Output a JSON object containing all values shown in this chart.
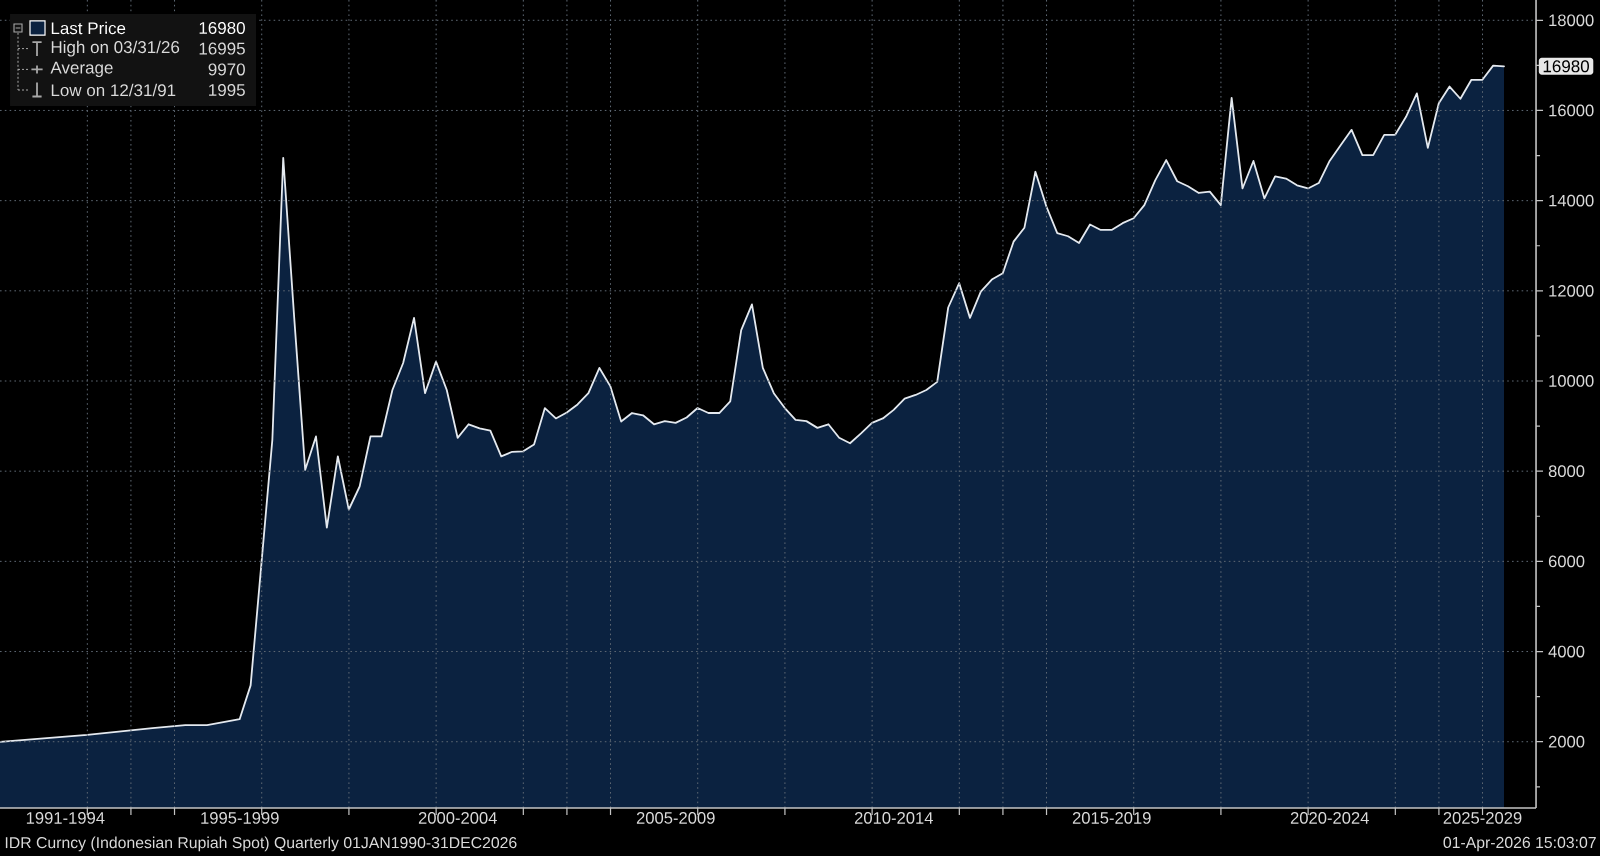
{
  "chart_data": {
    "type": "area",
    "x": [
      "1991-12-31",
      "1993-12-31",
      "1995-06-30",
      "1996-03-31",
      "1996-09-30",
      "1997-06-30",
      "1997-09-30",
      "1997-12-31",
      "1998-03-31",
      "1998-06-30",
      "1998-09-30",
      "1998-12-31",
      "1999-03-31",
      "1999-06-30",
      "1999-09-30",
      "1999-12-31",
      "2000-03-31",
      "2000-06-30",
      "2000-09-30",
      "2000-12-31",
      "2001-03-31",
      "2001-06-30",
      "2001-09-30",
      "2001-12-31",
      "2002-03-31",
      "2002-06-30",
      "2002-09-30",
      "2002-12-31",
      "2003-03-31",
      "2003-06-30",
      "2003-09-30",
      "2003-12-31",
      "2004-03-31",
      "2004-06-30",
      "2004-09-30",
      "2004-12-31",
      "2005-03-31",
      "2005-06-30",
      "2005-09-30",
      "2005-12-31",
      "2006-03-31",
      "2006-06-30",
      "2006-09-30",
      "2006-12-31",
      "2007-03-31",
      "2007-06-30",
      "2007-09-30",
      "2007-12-31",
      "2008-03-31",
      "2008-06-30",
      "2008-09-30",
      "2008-12-31",
      "2009-03-31",
      "2009-06-30",
      "2009-09-30",
      "2009-12-31",
      "2010-03-31",
      "2010-06-30",
      "2010-09-30",
      "2010-12-31",
      "2011-03-31",
      "2011-06-30",
      "2011-09-30",
      "2011-12-31",
      "2012-03-31",
      "2012-06-30",
      "2012-09-30",
      "2012-12-31",
      "2013-03-31",
      "2013-06-30",
      "2013-09-30",
      "2013-12-31",
      "2014-03-31",
      "2014-06-30",
      "2014-09-30",
      "2014-12-31",
      "2015-03-31",
      "2015-06-30",
      "2015-09-30",
      "2015-12-31",
      "2016-03-31",
      "2016-06-30",
      "2016-09-30",
      "2016-12-31",
      "2017-03-31",
      "2017-06-30",
      "2017-09-30",
      "2017-12-31",
      "2018-03-31",
      "2018-06-30",
      "2018-09-30",
      "2018-12-31",
      "2019-03-31",
      "2019-06-30",
      "2019-09-30",
      "2019-12-31",
      "2020-03-31",
      "2020-06-30",
      "2020-09-30",
      "2020-12-31",
      "2021-03-31",
      "2021-06-30",
      "2021-09-30",
      "2021-12-31",
      "2022-03-31",
      "2022-06-30",
      "2022-09-30",
      "2022-12-31",
      "2023-03-31",
      "2023-06-30",
      "2023-09-30",
      "2023-12-31",
      "2024-03-31",
      "2024-06-30",
      "2024-09-30",
      "2024-12-31",
      "2025-03-31",
      "2025-06-30",
      "2025-09-30",
      "2025-12-31",
      "2026-03-31",
      "2026-06-30"
    ],
    "series": [
      {
        "name": "Last Price",
        "color": "#0b2240",
        "values": [
          1995,
          2150,
          2300,
          2370,
          2370,
          2500,
          3250,
          6000,
          8700,
          14950,
          11400,
          8030,
          8770,
          6750,
          8330,
          7150,
          7660,
          8770,
          8770,
          9800,
          10400,
          11400,
          9730,
          10430,
          9800,
          8740,
          9040,
          8950,
          8900,
          8330,
          8430,
          8440,
          8590,
          9400,
          9170,
          9300,
          9480,
          9730,
          10290,
          9880,
          9100,
          9290,
          9240,
          9040,
          9110,
          9070,
          9190,
          9400,
          9290,
          9290,
          9550,
          11130,
          11700,
          10290,
          9730,
          9400,
          9140,
          9110,
          8960,
          9040,
          8740,
          8620,
          8840,
          9070,
          9170,
          9360,
          9610,
          9690,
          9800,
          9980,
          11630,
          12170,
          11400,
          11980,
          12250,
          12390,
          13090,
          13400,
          14640,
          13870,
          13280,
          13210,
          13060,
          13470,
          13350,
          13350,
          13500,
          13610,
          13900,
          14450,
          14900,
          14430,
          14320,
          14170,
          14200,
          13900,
          16280,
          14270,
          14880,
          14050,
          14540,
          14490,
          14340,
          14270,
          14390,
          14880,
          15230,
          15570,
          15010,
          15010,
          15460,
          15460,
          15860,
          16380,
          15170,
          16160,
          16530,
          16260,
          16680,
          16680,
          16995,
          16980
        ]
      }
    ],
    "xlim": [
      "1991-12-31",
      "2027-03-25"
    ],
    "ylim": [
      530,
      18450
    ],
    "xticks": [
      {
        "value": "1993-07",
        "label": "1991-1994"
      },
      {
        "value": "1994",
        "label": null
      },
      {
        "value": "1995",
        "label": null
      },
      {
        "value": "1996",
        "label": null
      },
      {
        "value": "1997-07",
        "label": "1995-1999"
      },
      {
        "value": "1998",
        "label": null
      },
      {
        "value": "2000",
        "label": null
      },
      {
        "value": "2002",
        "label": null
      },
      {
        "value": "2002-07",
        "label": "2000-2004"
      },
      {
        "value": "2004",
        "label": null
      },
      {
        "value": "2005",
        "label": null
      },
      {
        "value": "2006",
        "label": null
      },
      {
        "value": "2007-07",
        "label": "2005-2009"
      },
      {
        "value": "2008",
        "label": null
      },
      {
        "value": "2010",
        "label": null
      },
      {
        "value": "2012",
        "label": null
      },
      {
        "value": "2012-07",
        "label": "2010-2014"
      },
      {
        "value": "2014",
        "label": null
      },
      {
        "value": "2015",
        "label": null
      },
      {
        "value": "2016",
        "label": null
      },
      {
        "value": "2017-07",
        "label": "2015-2019"
      },
      {
        "value": "2018",
        "label": null
      },
      {
        "value": "2020",
        "label": null
      },
      {
        "value": "2022",
        "label": null
      },
      {
        "value": "2022-07",
        "label": "2020-2024"
      },
      {
        "value": "2024",
        "label": null
      },
      {
        "value": "2025",
        "label": null
      },
      {
        "value": "2026",
        "label": null
      },
      {
        "value": "2026-01",
        "label": "2025-2029"
      }
    ],
    "yticks": [
      {
        "value": 1000,
        "label": null
      },
      2000,
      {
        "value": 3000,
        "label": null
      },
      4000,
      {
        "value": 5000,
        "label": null
      },
      6000,
      {
        "value": 7000,
        "label": null
      },
      8000,
      {
        "value": 9000,
        "label": null
      },
      10000,
      {
        "value": 11000,
        "label": null
      },
      12000,
      {
        "value": 13000,
        "label": null
      },
      14000,
      {
        "value": 15000,
        "label": null
      },
      16000,
      {
        "value": 17000,
        "label": null
      },
      18000
    ],
    "grid": true,
    "legend": "top left",
    "annotations": [
      "16980",
      "High on 03/31/26",
      "16995",
      "Average",
      "9970",
      "Low on 12/31/91",
      "1995",
      "IDR Curncy (Indonesian Rupiah Spot) Quarterly 01JAN1990-31DEC2026",
      "01-Apr-2026 15:03:07",
      {
        "text": "16980",
        "y": 16980
      }
    ]
  }
}
